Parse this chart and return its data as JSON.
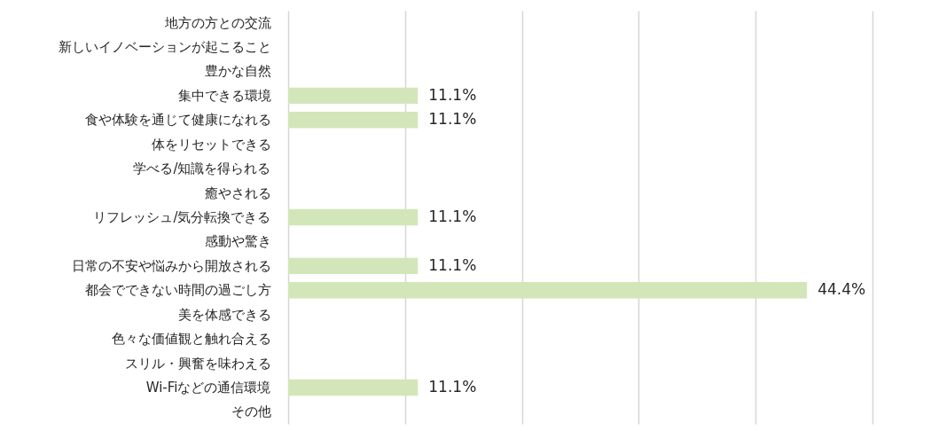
{
  "chart_data": {
    "type": "bar",
    "orientation": "horizontal",
    "categories": [
      "地方の方との交流",
      "新しいイノベーションが起こること",
      "豊かな自然",
      "集中できる環境",
      "食や体験を通じて健康になれる",
      "体をリセットできる",
      "学べる/知識を得られる",
      "癒やされる",
      "リフレッシュ/気分転換できる",
      "感動や驚き",
      "日常の不安や悩みから開放される",
      "都会でできない時間の過ごし方",
      "美を体感できる",
      "色々な価値観と触れ合える",
      "スリル・興奮を味わえる",
      "Wi-Fiなどの通信環境",
      "その他"
    ],
    "values": [
      0,
      0,
      0,
      11.1,
      11.1,
      0,
      0,
      0,
      11.1,
      0,
      11.1,
      44.4,
      0,
      0,
      0,
      11.1,
      0
    ],
    "value_labels": [
      null,
      null,
      null,
      "11.1%",
      "11.1%",
      null,
      null,
      null,
      "11.1%",
      null,
      "11.1%",
      "44.4%",
      null,
      null,
      null,
      "11.1%",
      null
    ],
    "color": "#d3e6b9",
    "xlim": [
      0,
      50
    ],
    "xticks": [
      {
        "value": 0,
        "label": null
      },
      {
        "value": 10,
        "label": null
      },
      {
        "value": 20,
        "label": null
      },
      {
        "value": 30,
        "label": null
      },
      {
        "value": 40,
        "label": null
      },
      {
        "value": 50,
        "label": null
      }
    ],
    "grid": "x",
    "tick_labels": "y"
  }
}
